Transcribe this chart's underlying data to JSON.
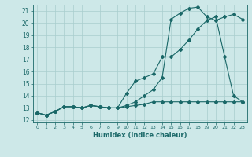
{
  "xlabel": "Humidex (Indice chaleur)",
  "ylabel": "",
  "bg_color": "#cde8e8",
  "grid_color": "#a8cece",
  "line_color": "#1a6868",
  "xlim": [
    -0.5,
    23.5
  ],
  "ylim": [
    11.8,
    21.5
  ],
  "xticks": [
    0,
    1,
    2,
    3,
    4,
    5,
    6,
    7,
    8,
    9,
    10,
    11,
    12,
    13,
    14,
    15,
    16,
    17,
    18,
    19,
    20,
    21,
    22,
    23
  ],
  "yticks": [
    12,
    13,
    14,
    15,
    16,
    17,
    18,
    19,
    20,
    21
  ],
  "line1_x": [
    0,
    1,
    2,
    3,
    4,
    5,
    6,
    7,
    8,
    9,
    10,
    11,
    12,
    13,
    14,
    15,
    16,
    17,
    18,
    19,
    20,
    21,
    22,
    23
  ],
  "line1_y": [
    12.6,
    12.4,
    12.7,
    13.1,
    13.1,
    13.0,
    13.2,
    13.1,
    13.0,
    13.0,
    13.1,
    13.2,
    13.3,
    13.5,
    13.5,
    13.5,
    13.5,
    13.5,
    13.5,
    13.5,
    13.5,
    13.5,
    13.5,
    13.5
  ],
  "line2_x": [
    0,
    1,
    2,
    3,
    4,
    5,
    6,
    7,
    8,
    9,
    10,
    11,
    12,
    13,
    14,
    15,
    16,
    17,
    18,
    19,
    20,
    21,
    22,
    23
  ],
  "line2_y": [
    12.6,
    12.4,
    12.7,
    13.1,
    13.1,
    13.0,
    13.2,
    13.1,
    13.0,
    13.0,
    14.2,
    15.2,
    15.5,
    15.8,
    17.2,
    17.2,
    17.8,
    18.6,
    19.5,
    20.2,
    20.5,
    17.2,
    14.0,
    13.5
  ],
  "line3_x": [
    0,
    1,
    2,
    3,
    4,
    5,
    6,
    7,
    8,
    9,
    10,
    11,
    12,
    13,
    14,
    15,
    16,
    17,
    18,
    19,
    20,
    21,
    22,
    23
  ],
  "line3_y": [
    12.6,
    12.4,
    12.7,
    13.1,
    13.1,
    13.0,
    13.2,
    13.1,
    13.0,
    13.0,
    13.2,
    13.5,
    14.0,
    14.5,
    15.5,
    20.3,
    20.8,
    21.2,
    21.3,
    20.5,
    20.2,
    20.5,
    20.7,
    20.3
  ]
}
